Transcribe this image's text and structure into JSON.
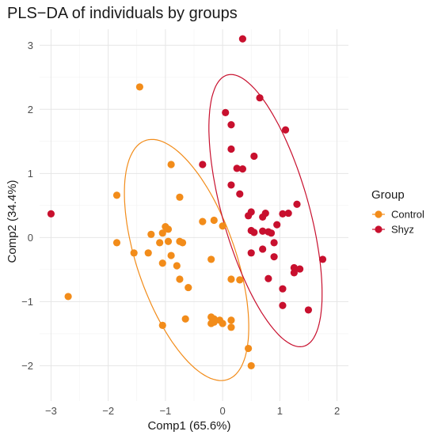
{
  "chart_data": {
    "type": "scatter",
    "title": "PLS−DA of individuals by groups",
    "xlabel": "Comp1 (65.6%)",
    "ylabel": "Comp2 (34.4%)",
    "xlim": [
      -3.2,
      2.2
    ],
    "ylim": [
      -2.55,
      3.25
    ],
    "x_ticks": [
      -3,
      -2,
      -1,
      0,
      1,
      2
    ],
    "y_ticks": [
      -2,
      -1,
      0,
      1,
      2,
      3
    ],
    "x_tick_labels": [
      "−3",
      "−2",
      "−1",
      "0",
      "1",
      "2"
    ],
    "y_tick_labels": [
      "−2",
      "−1",
      "0",
      "1",
      "2",
      "3"
    ],
    "grid": true,
    "legend": {
      "title": "Group",
      "position": "right"
    },
    "series": [
      {
        "name": "Control",
        "color": "#F28C1A",
        "points": [
          [
            -1.45,
            2.35
          ],
          [
            -1.85,
            0.66
          ],
          [
            -0.9,
            1.14
          ],
          [
            -0.75,
            0.63
          ],
          [
            -1.85,
            -0.08
          ],
          [
            -1.55,
            -0.24
          ],
          [
            -1.3,
            -0.24
          ],
          [
            -1.25,
            0.05
          ],
          [
            -1.0,
            0.17
          ],
          [
            -1.05,
            0.07
          ],
          [
            -0.95,
            0.13
          ],
          [
            -1.1,
            -0.08
          ],
          [
            -0.95,
            -0.06
          ],
          [
            -0.75,
            -0.06
          ],
          [
            -0.7,
            -0.08
          ],
          [
            -0.35,
            0.25
          ],
          [
            -0.15,
            0.27
          ],
          [
            -0.9,
            -0.28
          ],
          [
            -1.05,
            -0.4
          ],
          [
            -0.8,
            -0.44
          ],
          [
            -0.75,
            -0.65
          ],
          [
            -0.6,
            -0.78
          ],
          [
            -0.2,
            -0.34
          ],
          [
            0.0,
            0.18
          ],
          [
            0.15,
            -0.65
          ],
          [
            0.3,
            -0.66
          ],
          [
            -0.65,
            -1.27
          ],
          [
            -0.2,
            -1.24
          ],
          [
            -0.15,
            -1.27
          ],
          [
            -0.15,
            -1.32
          ],
          [
            -0.2,
            -1.34
          ],
          [
            -0.05,
            -1.29
          ],
          [
            0.0,
            -1.34
          ],
          [
            0.15,
            -1.29
          ],
          [
            0.15,
            -1.4
          ],
          [
            -1.05,
            -1.37
          ],
          [
            -2.7,
            -0.92
          ],
          [
            0.45,
            -1.73
          ],
          [
            0.5,
            -2.0
          ]
        ]
      },
      {
        "name": "Shyz",
        "color": "#C8102E",
        "points": [
          [
            0.35,
            3.1
          ],
          [
            0.05,
            1.95
          ],
          [
            0.65,
            2.18
          ],
          [
            0.15,
            1.76
          ],
          [
            1.1,
            1.68
          ],
          [
            -0.35,
            1.14
          ],
          [
            0.15,
            1.38
          ],
          [
            0.55,
            1.27
          ],
          [
            0.25,
            1.08
          ],
          [
            0.35,
            1.07
          ],
          [
            0.15,
            0.82
          ],
          [
            0.3,
            0.68
          ],
          [
            0.5,
            0.4
          ],
          [
            0.45,
            0.34
          ],
          [
            0.75,
            0.38
          ],
          [
            0.7,
            0.32
          ],
          [
            1.05,
            0.37
          ],
          [
            1.3,
            0.52
          ],
          [
            1.15,
            0.38
          ],
          [
            0.95,
            0.2
          ],
          [
            0.5,
            0.11
          ],
          [
            0.55,
            0.08
          ],
          [
            0.7,
            0.1
          ],
          [
            0.85,
            0.07
          ],
          [
            0.9,
            -0.08
          ],
          [
            0.8,
            0.09
          ],
          [
            0.7,
            -0.18
          ],
          [
            0.5,
            -0.24
          ],
          [
            0.9,
            -0.3
          ],
          [
            1.25,
            -0.47
          ],
          [
            1.35,
            -0.49
          ],
          [
            1.25,
            -0.55
          ],
          [
            1.75,
            -0.34
          ],
          [
            0.8,
            -0.64
          ],
          [
            1.05,
            -0.8
          ],
          [
            1.05,
            -1.06
          ],
          [
            1.5,
            -1.13
          ],
          [
            -3.0,
            0.37
          ]
        ]
      }
    ],
    "ellipses": [
      {
        "series": "Control",
        "cx": -0.63,
        "cy": -0.35,
        "semi_a": 2.0,
        "semi_b": 0.85,
        "angle_deg": -68
      },
      {
        "series": "Shyz",
        "cx": 0.75,
        "cy": 0.42,
        "semi_a": 2.22,
        "semi_b": 0.75,
        "angle_deg": -72
      }
    ]
  }
}
